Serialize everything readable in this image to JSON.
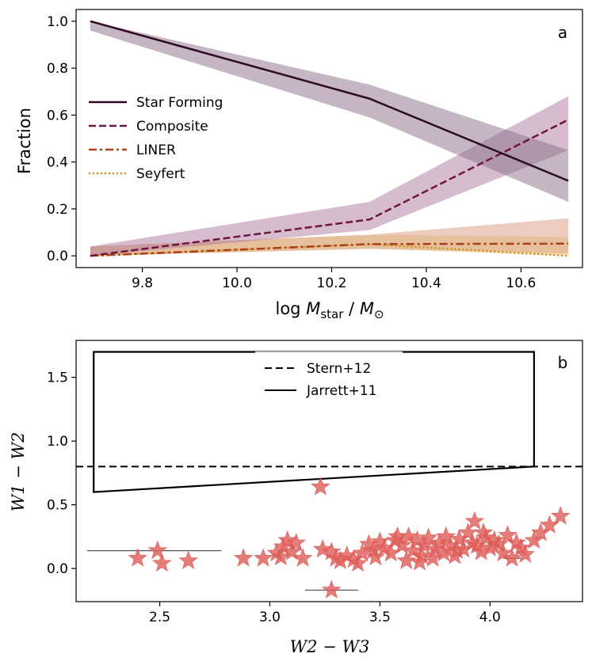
{
  "chart_data": [
    {
      "type": "line",
      "panel_label": "a",
      "ylabel": "Fraction",
      "xlabel": "log M_star / M_⊙",
      "xlabel_parts": {
        "prefix": "log ",
        "var": "M",
        "sub": "star",
        "mid": " / ",
        "var2": "M",
        "sub2": "⊙"
      },
      "x": [
        9.69,
        10.28,
        10.7
      ],
      "xlim": [
        9.66,
        10.73
      ],
      "ylim": [
        -0.05,
        1.05
      ],
      "xticks": [
        "9.8",
        "10.0",
        "10.2",
        "10.4",
        "10.6"
      ],
      "xtick_values": [
        9.8,
        10.0,
        10.2,
        10.4,
        10.6
      ],
      "yticks": [
        "0.0",
        "0.2",
        "0.4",
        "0.6",
        "0.8",
        "1.0"
      ],
      "ytick_values": [
        0.0,
        0.2,
        0.4,
        0.6,
        0.8,
        1.0
      ],
      "legend_position": "center-left",
      "grid": false,
      "series": [
        {
          "name": "Star Forming",
          "style": "solid",
          "color": "#2d0a26",
          "band_color": "#8a6f88",
          "values": [
            1.0,
            0.67,
            0.32
          ],
          "lower": [
            0.96,
            0.59,
            0.23
          ],
          "upper": [
            1.0,
            0.73,
            0.45
          ]
        },
        {
          "name": "Composite",
          "style": "dashed",
          "color": "#6e1541",
          "band_color": "#b07aa0",
          "values": [
            0.0,
            0.155,
            0.58
          ],
          "lower": [
            0.0,
            0.11,
            0.45
          ],
          "upper": [
            0.04,
            0.23,
            0.68
          ]
        },
        {
          "name": "LINER",
          "style": "dashdot",
          "color": "#a8401c",
          "band_color": "#d79a7e",
          "values": [
            0.0,
            0.05,
            0.052
          ],
          "lower": [
            0.0,
            0.03,
            0.01
          ],
          "upper": [
            0.04,
            0.09,
            0.16
          ]
        },
        {
          "name": "Seyfert",
          "style": "dotted",
          "color": "#d18c0f",
          "band_color": "#ecc97a",
          "values": [
            0.0,
            0.05,
            0.0
          ],
          "lower": [
            0.0,
            0.03,
            0.0
          ],
          "upper": [
            0.04,
            0.09,
            0.08
          ]
        }
      ]
    },
    {
      "type": "scatter",
      "panel_label": "b",
      "xlabel": "W2 − W3",
      "ylabel": "W1 − W2",
      "xlim": [
        2.12,
        4.42
      ],
      "ylim": [
        -0.26,
        1.79
      ],
      "xticks": [
        "2.5",
        "3.0",
        "3.5",
        "4.0"
      ],
      "xtick_values": [
        2.5,
        3.0,
        3.5,
        4.0
      ],
      "yticks": [
        "0.0",
        "0.5",
        "1.0",
        "1.5"
      ],
      "ytick_values": [
        0.0,
        0.5,
        1.0,
        1.5
      ],
      "legend_position": "top-center",
      "grid": false,
      "marker_color": "#dd5c58",
      "stern12": {
        "name": "Stern+12",
        "y": 0.8
      },
      "jarrett11": {
        "name": "Jarrett+11",
        "polygon": [
          [
            2.2,
            1.7
          ],
          [
            2.2,
            0.6
          ],
          [
            4.2,
            0.8
          ],
          [
            4.2,
            1.7
          ]
        ]
      },
      "points": [
        [
          2.4,
          0.08
        ],
        [
          2.49,
          0.14
        ],
        [
          2.51,
          0.04
        ],
        [
          2.63,
          0.06
        ],
        [
          2.88,
          0.08
        ],
        [
          2.97,
          0.08
        ],
        [
          3.03,
          0.12
        ],
        [
          3.05,
          0.09
        ],
        [
          3.06,
          0.17
        ],
        [
          3.08,
          0.22
        ],
        [
          3.1,
          0.13
        ],
        [
          3.12,
          0.2
        ],
        [
          3.15,
          0.08
        ],
        [
          3.23,
          0.64
        ],
        [
          3.28,
          -0.17
        ],
        [
          3.24,
          0.15
        ],
        [
          3.28,
          0.13
        ],
        [
          3.3,
          0.08
        ],
        [
          3.32,
          0.06
        ],
        [
          3.35,
          0.1
        ],
        [
          3.38,
          0.07
        ],
        [
          3.4,
          0.04
        ],
        [
          3.42,
          0.12
        ],
        [
          3.45,
          0.19
        ],
        [
          3.47,
          0.14
        ],
        [
          3.5,
          0.21
        ],
        [
          3.52,
          0.16
        ],
        [
          3.55,
          0.12
        ],
        [
          3.57,
          0.22
        ],
        [
          3.6,
          0.18
        ],
        [
          3.62,
          0.06
        ],
        [
          3.63,
          0.25
        ],
        [
          3.65,
          0.14
        ],
        [
          3.67,
          0.22
        ],
        [
          3.69,
          0.1
        ],
        [
          3.7,
          0.18
        ],
        [
          3.72,
          0.24
        ],
        [
          3.74,
          0.08
        ],
        [
          3.75,
          0.15
        ],
        [
          3.77,
          0.2
        ],
        [
          3.79,
          0.12
        ],
        [
          3.8,
          0.25
        ],
        [
          3.82,
          0.18
        ],
        [
          3.84,
          0.1
        ],
        [
          3.86,
          0.23
        ],
        [
          3.88,
          0.15
        ],
        [
          3.9,
          0.28
        ],
        [
          3.92,
          0.2
        ],
        [
          3.94,
          0.18
        ],
        [
          3.96,
          0.13
        ],
        [
          3.98,
          0.24
        ],
        [
          4.0,
          0.16
        ],
        [
          4.02,
          0.22
        ],
        [
          4.04,
          0.19
        ],
        [
          4.06,
          0.12
        ],
        [
          4.08,
          0.26
        ],
        [
          4.1,
          0.08
        ],
        [
          4.12,
          0.2
        ],
        [
          4.14,
          0.16
        ],
        [
          4.16,
          0.11
        ],
        [
          4.2,
          0.22
        ],
        [
          4.23,
          0.28
        ],
        [
          4.27,
          0.34
        ],
        [
          4.32,
          0.41
        ],
        [
          3.93,
          0.37
        ],
        [
          3.68,
          0.05
        ],
        [
          3.58,
          0.25
        ],
        [
          3.48,
          0.09
        ],
        [
          3.97,
          0.28
        ],
        [
          3.85,
          0.14
        ]
      ],
      "errorbars": [
        {
          "x": 2.5,
          "y": 0.14,
          "xerr_low": 2.17,
          "xerr_high": 2.78
        },
        {
          "x": 3.28,
          "y": -0.17,
          "xerr_low": 3.16,
          "xerr_high": 3.4
        },
        {
          "x": 4.1,
          "y": 0.08,
          "xerr_low": 4.06,
          "xerr_high": 4.14
        }
      ]
    }
  ]
}
